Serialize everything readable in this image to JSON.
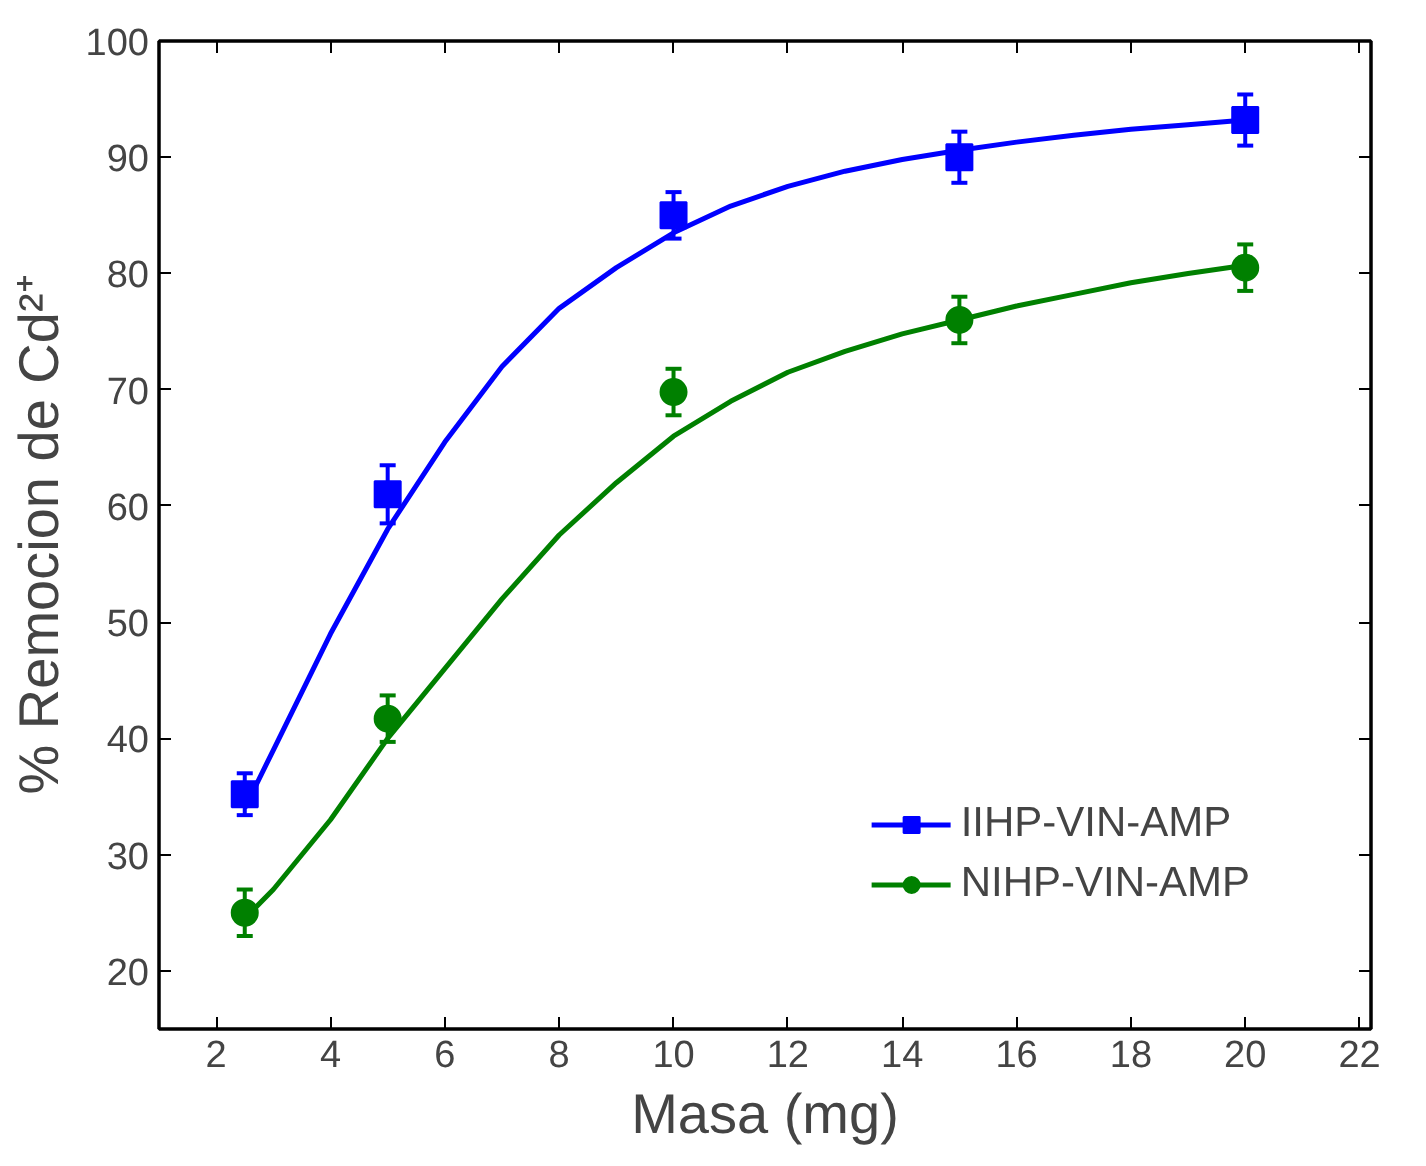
{
  "chart_data": {
    "type": "scatter",
    "xlabel": "Masa (mg)",
    "ylabel": "% Remocion de Cd²⁺",
    "xlim": [
      1,
      22.2
    ],
    "xticks": [
      2,
      4,
      6,
      8,
      10,
      12,
      14,
      16,
      18,
      20,
      22
    ],
    "ylim": [
      15,
      100
    ],
    "yticks": [
      20,
      30,
      40,
      50,
      60,
      70,
      80,
      90,
      100
    ],
    "grid": false,
    "legend": "bottom right",
    "series": [
      {
        "name": "IIHP-VIN-AMP",
        "color": "#0000ff",
        "marker": "square",
        "x": [
          2.5,
          5,
          10,
          15,
          20
        ],
        "values": [
          35.2,
          61,
          85,
          90,
          93.2
        ],
        "errors": [
          1.8,
          2.5,
          2,
          2.2,
          2.2
        ]
      },
      {
        "name": "NIHP-VIN-AMP",
        "color": "#008000",
        "marker": "circle",
        "x": [
          2.5,
          5,
          10,
          15,
          20
        ],
        "values": [
          25,
          41.7,
          69.8,
          76,
          80.5
        ],
        "errors": [
          2,
          2,
          2,
          2,
          2
        ]
      },
      {
        "color": "#0000ff",
        "type": "line",
        "marker": "none",
        "x": [
          2.5,
          3,
          4,
          5,
          6,
          7,
          8,
          9,
          10,
          11,
          12,
          13,
          14,
          15,
          16,
          17,
          18,
          19,
          20
        ],
        "values": [
          34,
          39,
          49,
          58,
          65.5,
          72,
          77,
          80.5,
          83.5,
          85.8,
          87.5,
          88.8,
          89.8,
          90.6,
          91.3,
          91.9,
          92.4,
          92.8,
          93.2
        ]
      },
      {
        "color": "#008000",
        "type": "line",
        "marker": "none",
        "x": [
          2.5,
          3,
          4,
          5,
          6,
          7,
          8,
          9,
          10,
          11,
          12,
          13,
          14,
          15,
          16,
          17,
          18,
          19,
          20
        ],
        "values": [
          24.5,
          27,
          33,
          40,
          46,
          52,
          57.5,
          62,
          66,
          69,
          71.5,
          73.3,
          74.8,
          76,
          77.2,
          78.2,
          79.2,
          80,
          80.7
        ]
      }
    ]
  }
}
